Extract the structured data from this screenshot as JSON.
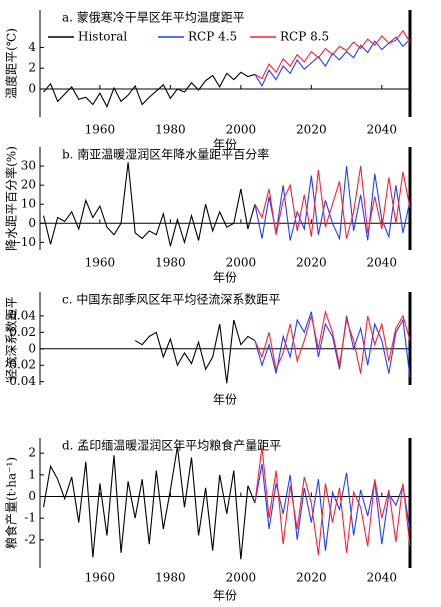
{
  "chart_data": [
    {
      "type": "line",
      "title": "a. 蒙俄寒冷干旱区年平均温度距平",
      "x_label": "年份",
      "y_label": "温度距平(℃)",
      "legend": true,
      "x": [
        1944,
        1946,
        1948,
        1950,
        1952,
        1954,
        1956,
        1958,
        1960,
        1962,
        1964,
        1966,
        1968,
        1970,
        1972,
        1974,
        1976,
        1978,
        1980,
        1982,
        1984,
        1986,
        1988,
        1990,
        1992,
        1994,
        1996,
        1998,
        2000,
        2002,
        2004,
        2006,
        2008,
        2010,
        2012,
        2014,
        2016,
        2018,
        2020,
        2022,
        2024,
        2026,
        2028,
        2030,
        2032,
        2034,
        2036,
        2038,
        2040,
        2042,
        2044,
        2046,
        2048
      ],
      "xlim": [
        1943,
        2048
      ],
      "xticks": [
        1960,
        1980,
        2000,
        2020,
        2040
      ],
      "ylim": [
        -2.7,
        7.6
      ],
      "yticks": [
        0,
        2,
        4
      ],
      "series": [
        {
          "name": "Historal",
          "color": "#000000",
          "values": [
            -0.3,
            0.5,
            -1.2,
            -0.5,
            0.2,
            -1.0,
            -0.8,
            -1.5,
            -0.4,
            -1.7,
            0.1,
            -1.2,
            -0.6,
            0.3,
            -1.5,
            -0.8,
            -0.2,
            0.4,
            -0.9,
            0.0,
            -0.3,
            0.6,
            -0.1,
            0.8,
            1.3,
            0.2,
            1.5,
            0.9,
            1.6,
            1.2,
            1.4,
            null,
            null,
            null,
            null,
            null,
            null,
            null,
            null,
            null,
            null,
            null,
            null,
            null,
            null,
            null,
            null,
            null,
            null,
            null,
            null,
            null,
            null
          ]
        },
        {
          "name": "RCP 4.5",
          "color": "#1f3fff",
          "values": [
            null,
            null,
            null,
            null,
            null,
            null,
            null,
            null,
            null,
            null,
            null,
            null,
            null,
            null,
            null,
            null,
            null,
            null,
            null,
            null,
            null,
            null,
            null,
            null,
            null,
            null,
            null,
            null,
            null,
            null,
            1.4,
            0.3,
            1.8,
            0.9,
            2.2,
            1.5,
            2.8,
            1.9,
            2.5,
            3.1,
            2.2,
            3.4,
            2.8,
            3.6,
            3.0,
            4.2,
            3.5,
            4.6,
            3.8,
            4.4,
            5.0,
            4.1,
            4.8
          ]
        },
        {
          "name": "RCP 8.5",
          "color": "#ff1f2f",
          "values": [
            null,
            null,
            null,
            null,
            null,
            null,
            null,
            null,
            null,
            null,
            null,
            null,
            null,
            null,
            null,
            null,
            null,
            null,
            null,
            null,
            null,
            null,
            null,
            null,
            null,
            null,
            null,
            null,
            null,
            null,
            1.4,
            1.0,
            2.4,
            1.6,
            2.9,
            2.2,
            3.3,
            2.6,
            3.6,
            3.0,
            3.9,
            3.3,
            4.1,
            3.7,
            4.5,
            3.9,
            4.8,
            4.2,
            5.1,
            4.4,
            4.7,
            5.6,
            4.5
          ]
        }
      ]
    },
    {
      "type": "line",
      "title": "b. 南亚温暖湿润区年降水量距平百分率",
      "x_label": "年份",
      "y_label": "降水距平百分率(%)",
      "legend": false,
      "x": [
        1944,
        1946,
        1948,
        1950,
        1952,
        1954,
        1956,
        1958,
        1960,
        1962,
        1964,
        1966,
        1968,
        1970,
        1972,
        1974,
        1976,
        1978,
        1980,
        1982,
        1984,
        1986,
        1988,
        1990,
        1992,
        1994,
        1996,
        1998,
        2000,
        2002,
        2004,
        2006,
        2008,
        2010,
        2012,
        2014,
        2016,
        2018,
        2020,
        2022,
        2024,
        2026,
        2028,
        2030,
        2032,
        2034,
        2036,
        2038,
        2040,
        2042,
        2044,
        2046,
        2048
      ],
      "xlim": [
        1943,
        2048
      ],
      "xticks": [
        1960,
        1980,
        2000,
        2020,
        2040
      ],
      "ylim": [
        -14,
        40
      ],
      "yticks": [
        -10,
        0,
        10,
        20,
        30
      ],
      "series": [
        {
          "name": "Historal",
          "color": "#000000",
          "values": [
            4,
            -11,
            3,
            1,
            6,
            -3,
            12,
            3,
            9,
            -2,
            -6,
            0,
            32,
            -5,
            -8,
            -4,
            -6,
            5,
            -12,
            2,
            -10,
            4,
            -9,
            10,
            -4,
            6,
            -2,
            0,
            18,
            -3,
            10,
            null,
            null,
            null,
            null,
            null,
            null,
            null,
            null,
            null,
            null,
            null,
            null,
            null,
            null,
            null,
            null,
            null,
            null,
            null,
            null,
            null,
            null
          ]
        },
        {
          "name": "RCP 4.5",
          "color": "#1f3fff",
          "values": [
            null,
            null,
            null,
            null,
            null,
            null,
            null,
            null,
            null,
            null,
            null,
            null,
            null,
            null,
            null,
            null,
            null,
            null,
            null,
            null,
            null,
            null,
            null,
            null,
            null,
            null,
            null,
            null,
            null,
            null,
            10,
            -8,
            14,
            -5,
            20,
            -9,
            6,
            -3,
            25,
            -6,
            12,
            0,
            -8,
            30,
            -4,
            15,
            -9,
            26,
            2,
            -7,
            20,
            -5,
            12
          ]
        },
        {
          "name": "RCP 8.5",
          "color": "#ff1f2f",
          "values": [
            null,
            null,
            null,
            null,
            null,
            null,
            null,
            null,
            null,
            null,
            null,
            null,
            null,
            null,
            null,
            null,
            null,
            null,
            null,
            null,
            null,
            null,
            null,
            null,
            null,
            null,
            null,
            null,
            null,
            null,
            10,
            3,
            18,
            -6,
            12,
            20,
            -4,
            15,
            -7,
            28,
            -2,
            10,
            22,
            -8,
            6,
            30,
            -5,
            14,
            -3,
            24,
            0,
            27,
            8
          ]
        }
      ]
    },
    {
      "type": "line",
      "title": "c. 中国东部季风区年平均径流深系数距平",
      "x_label": "年份",
      "y_label": "径流深系数距平",
      "legend": false,
      "x": [
        1944,
        1946,
        1948,
        1950,
        1952,
        1954,
        1956,
        1958,
        1960,
        1962,
        1964,
        1966,
        1968,
        1970,
        1972,
        1974,
        1976,
        1978,
        1980,
        1982,
        1984,
        1986,
        1988,
        1990,
        1992,
        1994,
        1996,
        1998,
        2000,
        2002,
        2004,
        2006,
        2008,
        2010,
        2012,
        2014,
        2016,
        2018,
        2020,
        2022,
        2024,
        2026,
        2028,
        2030,
        2032,
        2034,
        2036,
        2038,
        2040,
        2042,
        2044,
        2046,
        2048
      ],
      "xlim": [
        1943,
        2048
      ],
      "ylim": [
        -0.044,
        0.069
      ],
      "yticks": [
        -0.04,
        -0.02,
        0,
        0.02,
        0.04
      ],
      "series": [
        {
          "name": "Historal",
          "color": "#000000",
          "values": [
            null,
            null,
            null,
            null,
            null,
            null,
            null,
            null,
            null,
            null,
            null,
            null,
            null,
            0.01,
            0.005,
            0.015,
            0.02,
            -0.01,
            0.012,
            -0.02,
            -0.005,
            -0.018,
            0.008,
            -0.025,
            -0.01,
            0.03,
            -0.042,
            0.035,
            0.005,
            0.015,
            0.01,
            null,
            null,
            null,
            null,
            null,
            null,
            null,
            null,
            null,
            null,
            null,
            null,
            null,
            null,
            null,
            null,
            null,
            null,
            null,
            null,
            null,
            null
          ]
        },
        {
          "name": "RCP 4.5",
          "color": "#1f3fff",
          "values": [
            null,
            null,
            null,
            null,
            null,
            null,
            null,
            null,
            null,
            null,
            null,
            null,
            null,
            null,
            null,
            null,
            null,
            null,
            null,
            null,
            null,
            null,
            null,
            null,
            null,
            null,
            null,
            null,
            null,
            null,
            0.01,
            -0.02,
            0.005,
            -0.03,
            0.015,
            -0.01,
            0.035,
            0.02,
            0.045,
            -0.01,
            0.03,
            0.015,
            -0.025,
            0.04,
            0.0,
            0.025,
            -0.02,
            0.03,
            0.01,
            -0.03,
            0.02,
            0.035,
            -0.035
          ]
        },
        {
          "name": "RCP 8.5",
          "color": "#ff1f2f",
          "values": [
            null,
            null,
            null,
            null,
            null,
            null,
            null,
            null,
            null,
            null,
            null,
            null,
            null,
            null,
            null,
            null,
            null,
            null,
            null,
            null,
            null,
            null,
            null,
            null,
            null,
            null,
            null,
            null,
            null,
            null,
            0.01,
            -0.01,
            0.02,
            -0.025,
            -0.005,
            0.03,
            -0.015,
            0.01,
            0.04,
            0.0,
            0.045,
            0.02,
            -0.02,
            0.035,
            0.01,
            -0.03,
            0.04,
            0.005,
            0.03,
            -0.015,
            0.025,
            0.04,
            0.01
          ]
        }
      ]
    },
    {
      "type": "line",
      "title": "d. 孟印缅温暖湿润区年平均粮食产量距平",
      "x_label": "年份",
      "y_label": "粮食产量(t·ha⁻¹)",
      "legend": false,
      "x": [
        1944,
        1946,
        1948,
        1950,
        1952,
        1954,
        1956,
        1958,
        1960,
        1962,
        1964,
        1966,
        1968,
        1970,
        1972,
        1974,
        1976,
        1978,
        1980,
        1982,
        1984,
        1986,
        1988,
        1990,
        1992,
        1994,
        1996,
        1998,
        2000,
        2002,
        2004,
        2006,
        2008,
        2010,
        2012,
        2014,
        2016,
        2018,
        2020,
        2022,
        2024,
        2026,
        2028,
        2030,
        2032,
        2034,
        2036,
        2038,
        2040,
        2042,
        2044,
        2046,
        2048
      ],
      "xlim": [
        1943,
        2048
      ],
      "xticks": [
        1960,
        1980,
        2000,
        2020,
        2040
      ],
      "ylim": [
        -3.3,
        2.7
      ],
      "yticks": [
        -2,
        -1,
        0,
        1,
        2
      ],
      "series": [
        {
          "name": "Historal",
          "color": "#000000",
          "values": [
            -0.5,
            1.4,
            0.8,
            -0.1,
            0.9,
            -1.2,
            1.6,
            -2.8,
            0.6,
            -1.8,
            1.9,
            -2.6,
            0.7,
            -1.0,
            0.8,
            -2.2,
            1.2,
            -1.5,
            0.3,
            2.3,
            -0.5,
            1.8,
            -1.8,
            0.4,
            -2.5,
            1.0,
            -0.8,
            1.2,
            -2.9,
            0.5,
            -0.3,
            null,
            null,
            null,
            null,
            null,
            null,
            null,
            null,
            null,
            null,
            null,
            null,
            null,
            null,
            null,
            null,
            null,
            null,
            null,
            null,
            null,
            null
          ]
        },
        {
          "name": "RCP 4.5",
          "color": "#1f3fff",
          "values": [
            null,
            null,
            null,
            null,
            null,
            null,
            null,
            null,
            null,
            null,
            null,
            null,
            null,
            null,
            null,
            null,
            null,
            null,
            null,
            null,
            null,
            null,
            null,
            null,
            null,
            null,
            null,
            null,
            null,
            null,
            -0.3,
            1.5,
            -1.5,
            0.6,
            -0.8,
            1.0,
            -2.0,
            0.4,
            -1.2,
            0.8,
            -2.5,
            0.2,
            -0.6,
            1.1,
            -1.8,
            0.3,
            -0.9,
            0.7,
            -2.2,
            0.1,
            -0.4,
            0.5,
            -1.6
          ]
        },
        {
          "name": "RCP 8.5",
          "color": "#ff1f2f",
          "values": [
            null,
            null,
            null,
            null,
            null,
            null,
            null,
            null,
            null,
            null,
            null,
            null,
            null,
            null,
            null,
            null,
            null,
            null,
            null,
            null,
            null,
            null,
            null,
            null,
            null,
            null,
            null,
            null,
            null,
            null,
            -0.3,
            2.3,
            -1.0,
            1.2,
            -2.2,
            0.5,
            -1.5,
            0.9,
            -0.3,
            -2.7,
            0.6,
            -1.2,
            0.4,
            -2.6,
            0.2,
            -0.5,
            -2.3,
            0.8,
            -1.0,
            0.3,
            -2.1,
            0.6,
            -2.3
          ]
        }
      ]
    }
  ]
}
